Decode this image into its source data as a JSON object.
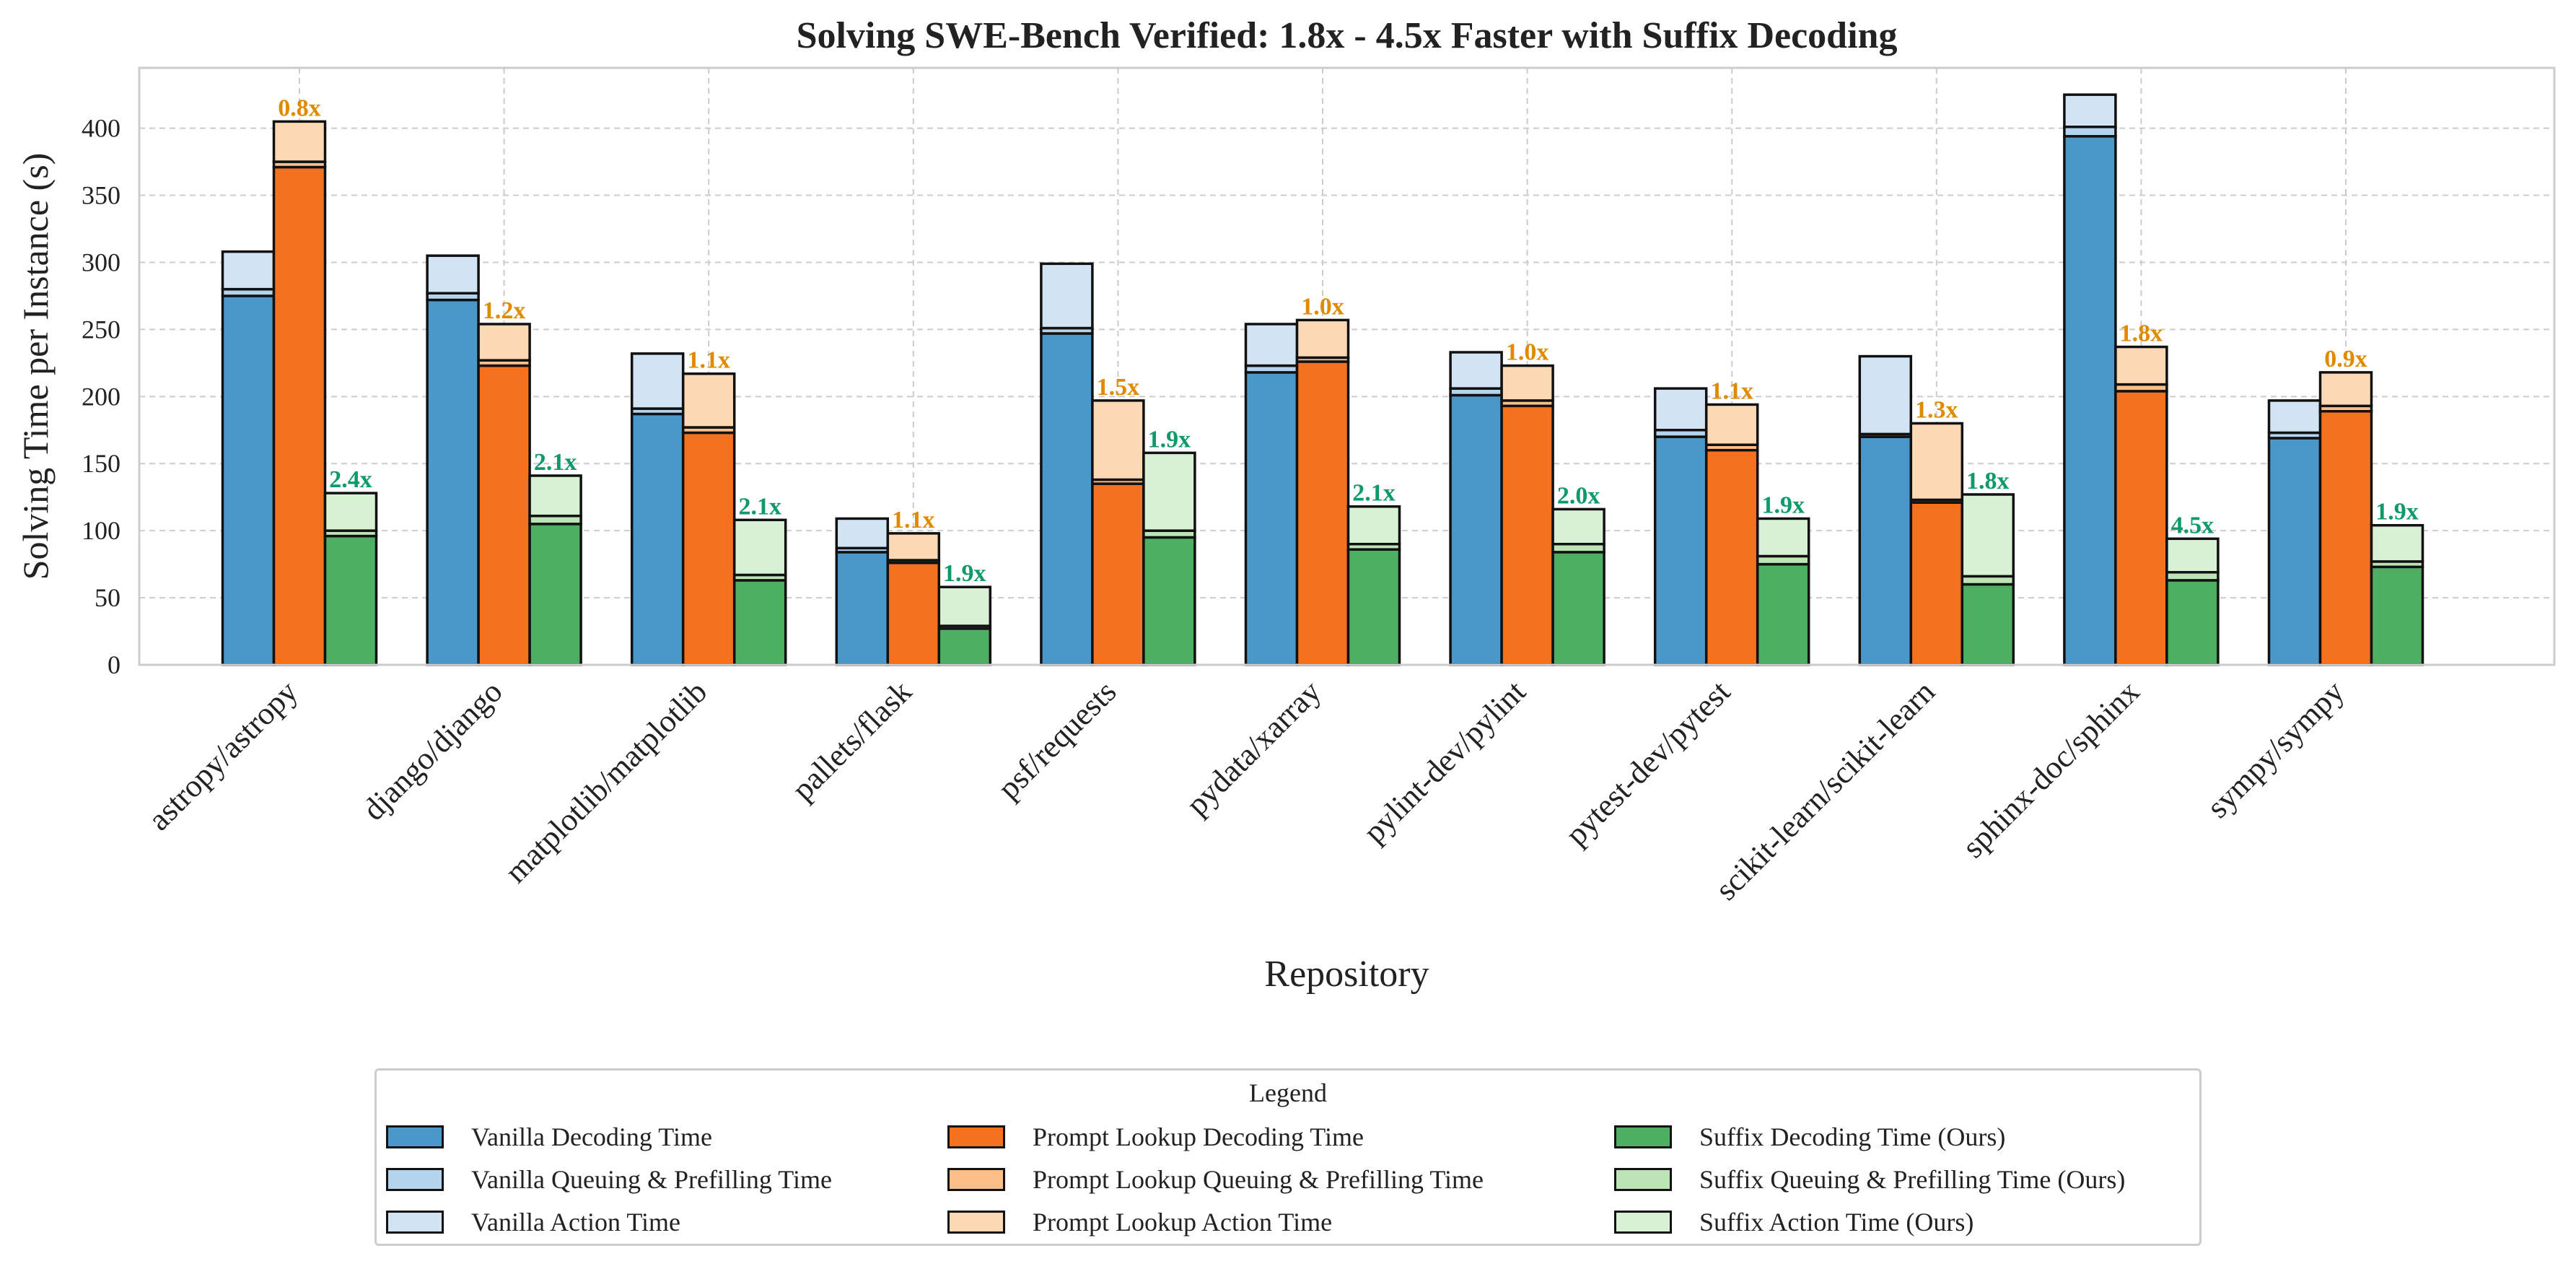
{
  "chart_data": {
    "type": "bar",
    "stacked": true,
    "grouped": true,
    "title": "Solving SWE-Bench Verified: 1.8x - 4.5x Faster with Suffix Decoding",
    "xlabel": "Repository",
    "ylabel": "Solving Time per Instance (s)",
    "ylim": [
      0,
      445
    ],
    "yticks": [
      0,
      50,
      100,
      150,
      200,
      250,
      300,
      350,
      400
    ],
    "grid": true,
    "legend_title": "Legend",
    "legend_position": "bottom-center",
    "categories": [
      "astropy/astropy",
      "django/django",
      "matplotlib/matplotlib",
      "pallets/flask",
      "psf/requests",
      "pydata/xarray",
      "pylint-dev/pylint",
      "pytest-dev/pytest",
      "scikit-learn/scikit-learn",
      "sphinx-doc/sphinx",
      "sympy/sympy"
    ],
    "methods": [
      {
        "label_color": "",
        "series": [
          {
            "name": "Vanilla Decoding Time",
            "color": "#4a98c9",
            "values": [
              275,
              272,
              187,
              84,
              247,
              218,
              201,
              170,
              170,
              394,
              169
            ]
          },
          {
            "name": "Vanilla Queuing & Prefilling Time",
            "color": "#b4d3ec",
            "values": [
              5,
              5,
              4,
              3,
              4,
              5,
              5,
              5,
              2,
              7,
              4
            ]
          },
          {
            "name": "Vanilla Action Time",
            "color": "#d2e3f3",
            "values": [
              28,
              28,
              41,
              22,
              48,
              31,
              27,
              31,
              58,
              24,
              24
            ]
          }
        ],
        "speedups": [
          "",
          "",
          "",
          "",
          "",
          "",
          "",
          "",
          "",
          "",
          ""
        ]
      },
      {
        "label_color": "#e08a00",
        "series": [
          {
            "name": "Prompt Lookup Decoding Time",
            "color": "#f4711f",
            "values": [
              371,
              223,
              173,
              76,
              135,
              226,
              193,
              160,
              121,
              204,
              189
            ]
          },
          {
            "name": "Prompt Lookup Queuing & Prefilling Time",
            "color": "#fdbe87",
            "values": [
              4,
              4,
              4,
              2,
              3,
              3,
              4,
              4,
              2,
              5,
              4
            ]
          },
          {
            "name": "Prompt Lookup Action Time",
            "color": "#fdd8b4",
            "values": [
              30,
              27,
              40,
              20,
              59,
              28,
              26,
              30,
              57,
              28,
              25
            ]
          }
        ],
        "speedups": [
          "0.8x",
          "1.2x",
          "1.1x",
          "1.1x",
          "1.5x",
          "1.0x",
          "1.0x",
          "1.1x",
          "1.3x",
          "1.8x",
          "0.9x"
        ]
      },
      {
        "label_color": "#0e9a6c",
        "series": [
          {
            "name": "Suffix Decoding Time (Ours)",
            "color": "#4daf62",
            "values": [
              96,
              105,
              63,
              27,
              95,
              86,
              84,
              75,
              60,
              63,
              73
            ]
          },
          {
            "name": "Suffix Queuing & Prefilling Time (Ours)",
            "color": "#bce4b5",
            "values": [
              4,
              6,
              4,
              2,
              5,
              4,
              6,
              6,
              6,
              6,
              4
            ]
          },
          {
            "name": "Suffix Action Time (Ours)",
            "color": "#d8f0d3",
            "values": [
              28,
              30,
              41,
              29,
              58,
              28,
              26,
              28,
              61,
              25,
              27
            ]
          }
        ],
        "speedups": [
          "2.4x",
          "2.1x",
          "2.1x",
          "1.9x",
          "1.9x",
          "2.1x",
          "2.0x",
          "1.9x",
          "1.8x",
          "4.5x",
          "1.9x"
        ]
      }
    ]
  }
}
